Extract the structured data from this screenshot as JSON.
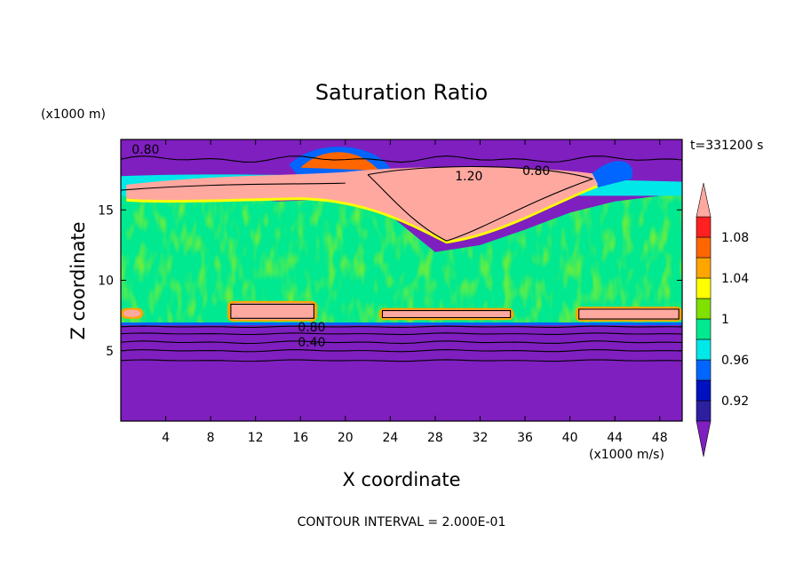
{
  "chart_data": {
    "type": "heatmap",
    "title": "Saturation Ratio",
    "xlabel": "X coordinate",
    "ylabel": "Z coordinate",
    "x_unit": "(x1000 m/s)",
    "y_unit": "(x1000 m)",
    "time_label": "t=331200 s",
    "footer": "CONTOUR INTERVAL = 2.000E-01",
    "xlim": [
      0,
      50
    ],
    "ylim": [
      0,
      20
    ],
    "x_ticks": [
      4,
      8,
      12,
      16,
      20,
      24,
      28,
      32,
      36,
      40,
      44,
      48
    ],
    "x_tick_labels": [
      "4",
      "8",
      "12",
      "16",
      "20",
      "24",
      "28",
      "32",
      "36",
      "40",
      "44",
      "48"
    ],
    "y_ticks": [
      5,
      10,
      15
    ],
    "y_tick_labels": [
      "5",
      "10",
      "15"
    ],
    "colorbar": {
      "levels": [
        0.9,
        0.92,
        0.94,
        0.96,
        0.98,
        1.0,
        1.02,
        1.04,
        1.06,
        1.08,
        1.1
      ],
      "colors": [
        "#7f1fbf",
        "#2d1fa0",
        "#0011c0",
        "#0066ff",
        "#00e8e8",
        "#00e890",
        "#80e000",
        "#ffff00",
        "#ffa500",
        "#ff6600",
        "#ff2020",
        "#ffa8a0"
      ],
      "labels": [
        "0.92",
        "0.96",
        "1",
        "1.04",
        "1.08"
      ],
      "label_values": [
        0.92,
        0.96,
        1.0,
        1.04,
        1.08
      ]
    },
    "contour_labels": [
      {
        "text": "0.80",
        "x": 2.2,
        "y": 19.3
      },
      {
        "text": "1.20",
        "x": 31.0,
        "y": 17.4
      },
      {
        "text": "0.80",
        "x": 37.0,
        "y": 17.8
      },
      {
        "text": "0.80",
        "x": 17.0,
        "y": 6.7
      },
      {
        "text": "0.40",
        "x": 17.0,
        "y": 5.6
      }
    ]
  }
}
